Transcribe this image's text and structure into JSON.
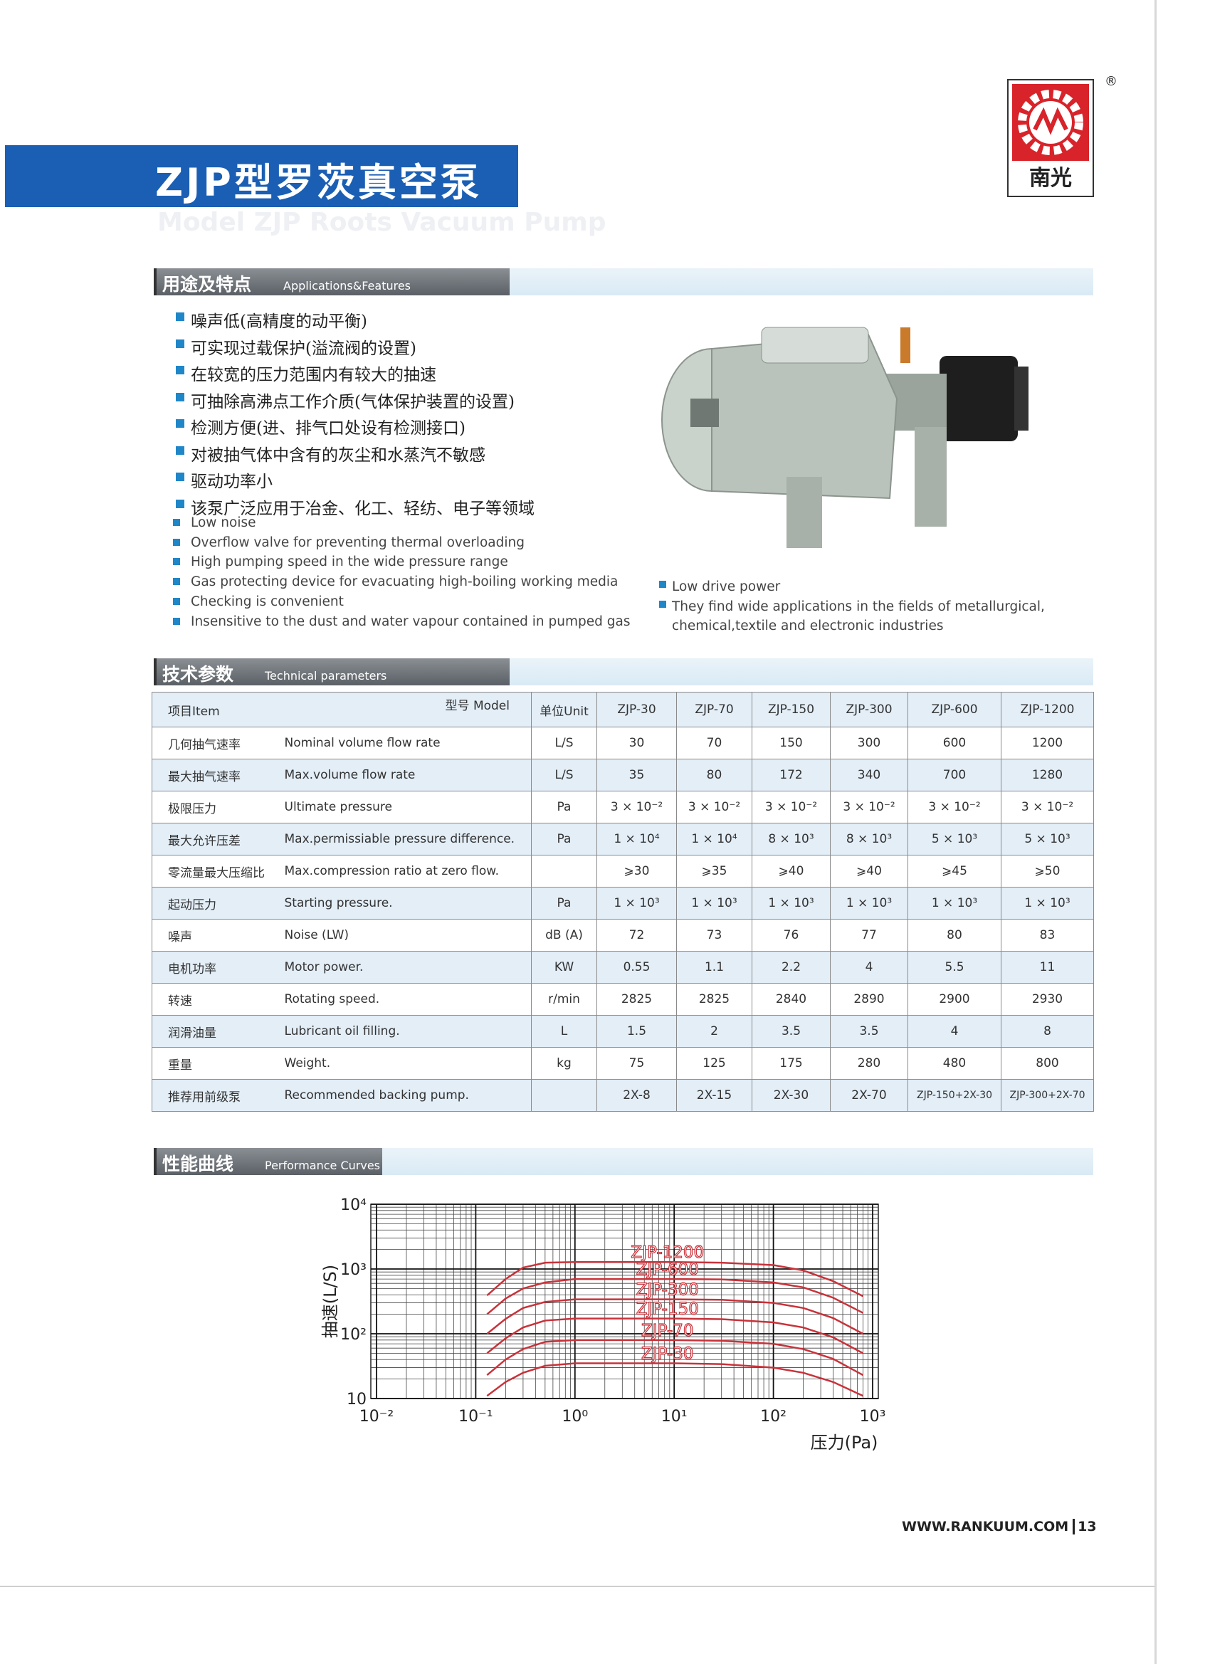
{
  "header": {
    "title": "ZJP型罗茨真空泵",
    "subtitle": "Model ZJP Roots Vacuum Pump",
    "logo": "南光",
    "registered": "®"
  },
  "features": {
    "heading_cn": "用途及特点",
    "heading_en": "Applications&Features",
    "items_cn": [
      "噪声低(高精度的动平衡)",
      "可实现过载保护(溢流阀的设置)",
      "在较宽的压力范围内有较大的抽速",
      "可抽除高沸点工作介质(气体保护装置的设置)",
      "检测方便(进、排气口处设有检测接口)",
      "对被抽气体中含有的灰尘和水蒸汽不敏感",
      "驱动功率小",
      "该泵广泛应用于冶金、化工、轻纺、电子等领域"
    ],
    "items_en": [
      "Low noise",
      "Overflow valve for preventing thermal overloading",
      "High pumping speed in the wide pressure range",
      "Gas protecting device for evacuating high-boiling working media",
      "Checking is convenient",
      "Insensitive to the dust and water vapour contained  in pumped gas"
    ],
    "items_en_right": [
      "Low drive power",
      "They find wide applications in the fields of metallurgical, chemical,textile and electronic industries"
    ]
  },
  "parameters": {
    "heading_cn": "技术参数",
    "heading_en": "Technical parameters",
    "columns": [
      "项目Item",
      "型号 Model",
      "单位Unit",
      "ZJP-30",
      "ZJP-70",
      "ZJP-150",
      "ZJP-300",
      "ZJP-600",
      "ZJP-1200"
    ],
    "rows": [
      [
        "几何抽气速率",
        "Nominal volume flow rate",
        "L/S",
        "30",
        "70",
        "150",
        "300",
        "600",
        "1200"
      ],
      [
        "最大抽气速率",
        "Max.volume flow rate",
        "L/S",
        "35",
        "80",
        "172",
        "340",
        "700",
        "1280"
      ],
      [
        "极限压力",
        "Ultimate pressure",
        "Pa",
        "3 × 10⁻²",
        "3 × 10⁻²",
        "3 × 10⁻²",
        "3 × 10⁻²",
        "3 × 10⁻²",
        "3 × 10⁻²"
      ],
      [
        "最大允许压差",
        "Max.permissiable pressure difference.",
        "Pa",
        "1 × 10⁴",
        "1 × 10⁴",
        "8 × 10³",
        "8 × 10³",
        "5 × 10³",
        "5 × 10³"
      ],
      [
        "零流量最大压缩比",
        "Max.compression ratio at zero flow.",
        null,
        "⩾30",
        "⩾35",
        "⩾40",
        "⩾40",
        "⩾45",
        "⩾50"
      ],
      [
        "起动压力",
        "Starting pressure.",
        "Pa",
        "1 × 10³",
        "1 × 10³",
        "1 × 10³",
        "1 × 10³",
        "1 × 10³",
        "1 × 10³"
      ],
      [
        "噪声",
        "Noise    (LW)",
        "dB (A)",
        "72",
        "73",
        "76",
        "77",
        "80",
        "83"
      ],
      [
        "电机功率",
        "Motor power.",
        "KW",
        "0.55",
        "1.1",
        "2.2",
        "4",
        "5.5",
        "11"
      ],
      [
        "转速",
        "Rotating speed.",
        "r/min",
        "2825",
        "2825",
        "2840",
        "2890",
        "2900",
        "2930"
      ],
      [
        "润滑油量",
        "Lubricant oil filling.",
        "L",
        "1.5",
        "2",
        "3.5",
        "3.5",
        "4",
        "8"
      ],
      [
        "重量",
        "Weight.",
        "kg",
        "75",
        "125",
        "175",
        "280",
        "480",
        "800"
      ],
      [
        "推荐用前级泵",
        "Recommended backing pump.",
        null,
        "2X-8",
        "2X-15",
        "2X-30",
        "2X-70",
        "ZJP-150+2X-30",
        "ZJP-300+2X-70"
      ]
    ]
  },
  "performance": {
    "heading_cn": "性能曲线",
    "heading_en": "Performance Curves"
  },
  "chart_data": {
    "type": "line",
    "y_label": "抽速(L/S)",
    "x_label": "压力(Pa)",
    "log_x": true,
    "log_y": true,
    "grid": true,
    "minor_grid": true,
    "xlim": [
      0.01,
      1000
    ],
    "ylim": [
      10,
      10000
    ],
    "xticks": [
      {
        "value": 0.01,
        "label": "10⁻²"
      },
      {
        "value": 0.1,
        "label": "10⁻¹"
      },
      {
        "value": 1,
        "label": "10⁰"
      },
      {
        "value": 10,
        "label": "10¹"
      },
      {
        "value": 100,
        "label": "10²"
      },
      {
        "value": 1000,
        "label": "10³"
      }
    ],
    "yticks": [
      10,
      {
        "value": 100,
        "label": "10²"
      },
      {
        "value": 1000,
        "label": "10³"
      },
      {
        "value": 10000,
        "label": "10⁴"
      }
    ],
    "x": [
      0.13,
      0.2,
      0.3,
      0.5,
      1,
      3,
      10,
      30,
      100,
      200,
      400,
      800
    ],
    "series": [
      {
        "name": "ZJP-1200",
        "color": "#c8323a",
        "values": [
          390,
          700,
          1050,
          1250,
          1280,
          1280,
          1280,
          1250,
          1150,
          950,
          650,
          380
        ]
      },
      {
        "name": "ZJP-600",
        "color": "#c8323a",
        "values": [
          200,
          350,
          500,
          620,
          700,
          700,
          700,
          690,
          620,
          520,
          360,
          210
        ]
      },
      {
        "name": "ZJP-300",
        "color": "#c8323a",
        "values": [
          100,
          170,
          250,
          310,
          340,
          340,
          340,
          335,
          300,
          250,
          175,
          100
        ]
      },
      {
        "name": "ZJP-150",
        "color": "#c8323a",
        "values": [
          50,
          85,
          125,
          160,
          172,
          172,
          172,
          168,
          150,
          125,
          88,
          50
        ]
      },
      {
        "name": "ZJP-70",
        "color": "#c8323a",
        "values": [
          23,
          40,
          58,
          75,
          80,
          80,
          80,
          78,
          70,
          58,
          41,
          23
        ]
      },
      {
        "name": "ZJP-30",
        "color": "#c8323a",
        "values": [
          11,
          18,
          25,
          32,
          35,
          35,
          35,
          34,
          30,
          25,
          18,
          11
        ]
      }
    ]
  },
  "footer": {
    "url": "WWW.RANKUUM.COM",
    "page": "13"
  }
}
